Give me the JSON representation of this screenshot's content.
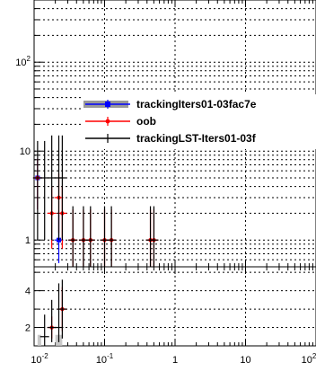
{
  "chart_data": {
    "type": "scatter",
    "x_scale": "log",
    "xlim": [
      0.01,
      100
    ],
    "x_tick_labels": [
      "10^-2",
      "10^-1",
      "1",
      "10",
      "10^2"
    ],
    "grid": true,
    "legend_placement": "middle-right",
    "panels": [
      {
        "name": "main",
        "y_scale": "log",
        "ylim": [
          0.5,
          500
        ],
        "y_tick_labels": [
          "1",
          "10",
          "10^2"
        ],
        "series": [
          {
            "name": "trackingIters01-03fac7e",
            "color": "#0000ff",
            "marker": "square",
            "points": [
              {
                "x": 0.0112,
                "y": 5,
                "yerr_low": 2.8,
                "yerr_high": 3.2
              },
              {
                "x": 0.0224,
                "y": 1,
                "yerr_low": 0.45,
                "yerr_high": 1.1
              }
            ]
          },
          {
            "name": "oob",
            "color": "#ff0000",
            "marker": "circle",
            "points": [
              {
                "x": 0.0112,
                "y": 5,
                "yerr_low": 2.8,
                "yerr_high": 3.2
              },
              {
                "x": 0.0178,
                "y": 2,
                "yerr_low": 1.2,
                "yerr_high": 2.0
              },
              {
                "x": 0.0224,
                "y": 3,
                "yerr_low": 1.8,
                "yerr_high": 2.6
              },
              {
                "x": 0.0251,
                "y": 2,
                "yerr_low": 1.2,
                "yerr_high": 2.0
              },
              {
                "x": 0.0355,
                "y": 1,
                "yerr_low": 0.5,
                "yerr_high": 1.2
              },
              {
                "x": 0.0501,
                "y": 1,
                "yerr_low": 0.5,
                "yerr_high": 1.2
              },
              {
                "x": 0.0631,
                "y": 1,
                "yerr_low": 0.5,
                "yerr_high": 1.2
              },
              {
                "x": 0.1,
                "y": 1,
                "yerr_low": 0.5,
                "yerr_high": 1.2
              },
              {
                "x": 0.125,
                "y": 1,
                "yerr_low": 0.5,
                "yerr_high": 1.2
              },
              {
                "x": 0.447,
                "y": 1,
                "yerr_low": 0.5,
                "yerr_high": 1.2
              },
              {
                "x": 0.501,
                "y": 1,
                "yerr_low": 0.5,
                "yerr_high": 1.2
              }
            ]
          },
          {
            "name": "trackingLST-Iters01-03f",
            "color": "#000000",
            "marker": "plus",
            "points": [
              {
                "x": 0.0112,
                "y": 5,
                "yerr_low": 4,
                "yerr_high": 8
              },
              {
                "x": 0.0141,
                "y": 5,
                "yerr_low": 4,
                "yerr_high": 8
              },
              {
                "x": 0.0178,
                "y": 5,
                "yerr_low": 4,
                "yerr_high": 10
              },
              {
                "x": 0.0224,
                "y": 5,
                "yerr_low": 4,
                "yerr_high": 10
              },
              {
                "x": 0.0251,
                "y": 5,
                "yerr_low": 4,
                "yerr_high": 10
              },
              {
                "x": 0.0355,
                "y": 1,
                "yerr_low": 0.5,
                "yerr_high": 1.4
              },
              {
                "x": 0.0501,
                "y": 1,
                "yerr_low": 0.5,
                "yerr_high": 1.4
              },
              {
                "x": 0.0631,
                "y": 1,
                "yerr_low": 0.5,
                "yerr_high": 1.4
              },
              {
                "x": 0.1,
                "y": 1,
                "yerr_low": 0.5,
                "yerr_high": 1.4
              },
              {
                "x": 0.125,
                "y": 1,
                "yerr_low": 0.5,
                "yerr_high": 1.4
              },
              {
                "x": 0.447,
                "y": 1,
                "yerr_low": 0.5,
                "yerr_high": 1.4
              },
              {
                "x": 0.501,
                "y": 1,
                "yerr_low": 0.5,
                "yerr_high": 1.4
              }
            ]
          }
        ],
        "legend": [
          {
            "label": "trackingIters01-03fac7e",
            "color": "#0000ff",
            "marker": "square",
            "band": true
          },
          {
            "label": "oob",
            "color": "#ff0000",
            "marker": "circle",
            "band": false
          },
          {
            "label": "trackingLST-Iters01-03f",
            "color": "#000000",
            "marker": "plus",
            "band": false
          }
        ]
      },
      {
        "name": "ratio",
        "y_scale": "linear",
        "ylim": [
          1,
          5.3
        ],
        "y_ticks": [
          2,
          4
        ],
        "y_tick_labels": [
          "2",
          "4"
        ],
        "series": [
          {
            "name": "",
            "color": "#ff0000",
            "marker": "circle",
            "points": [
              {
                "x": 0.0178,
                "y": 2,
                "yerr_low": 0.6,
                "yerr_high": 0.6
              },
              {
                "x": 0.0251,
                "y": 3,
                "yerr_low": 1.2,
                "yerr_high": 1.2
              }
            ]
          },
          {
            "name": "",
            "color": "#000000",
            "marker": "plus",
            "points": [
              {
                "x": 0.0141,
                "y": 1.5,
                "yerr_low": 0.5,
                "yerr_high": 1.2
              },
              {
                "x": 0.0178,
                "y": 2,
                "yerr_low": 0.8,
                "yerr_high": 1.5
              },
              {
                "x": 0.0224,
                "y": 2,
                "yerr_low": 0.8,
                "yerr_high": 2.4
              },
              {
                "x": 0.0251,
                "y": 3,
                "yerr_low": 1.6,
                "yerr_high": 1.6
              }
            ]
          }
        ],
        "bands": [
          {
            "x0": 0.0112,
            "x1": 0.0126,
            "y0": 1.0,
            "y1": 1.6,
            "color": "#bbbbbb"
          },
          {
            "x0": 0.02,
            "x1": 0.0251,
            "y0": 1.0,
            "y1": 1.6,
            "color": "#bbbbbb"
          }
        ]
      }
    ]
  }
}
